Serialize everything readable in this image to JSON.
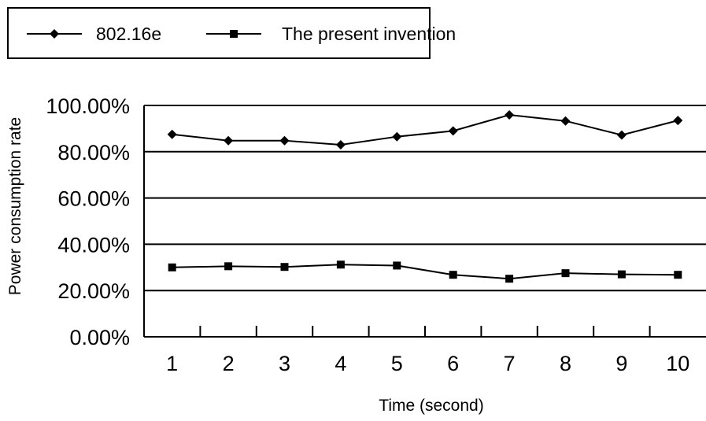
{
  "chart_data": {
    "type": "line",
    "title": "",
    "xlabel": "Time (second)",
    "ylabel": "Power consumption rate",
    "categories": [
      "1",
      "2",
      "3",
      "4",
      "5",
      "6",
      "7",
      "8",
      "9",
      "10"
    ],
    "ylim": [
      0,
      100
    ],
    "y_ticks": [
      "0.00%",
      "20.00%",
      "40.00%",
      "60.00%",
      "80.00%",
      "100.00%"
    ],
    "grid": "horizontal",
    "legend_position": "top-left",
    "series": [
      {
        "name": "802.16e",
        "marker": "diamond",
        "color": "#000000",
        "values": [
          87.5,
          84.8,
          84.8,
          83.0,
          86.5,
          89.0,
          95.9,
          93.3,
          87.2,
          93.5
        ]
      },
      {
        "name": "The present invention",
        "marker": "square",
        "color": "#000000",
        "values": [
          30.0,
          30.5,
          30.2,
          31.2,
          30.8,
          26.8,
          25.1,
          27.5,
          27.0,
          26.8
        ]
      }
    ]
  }
}
